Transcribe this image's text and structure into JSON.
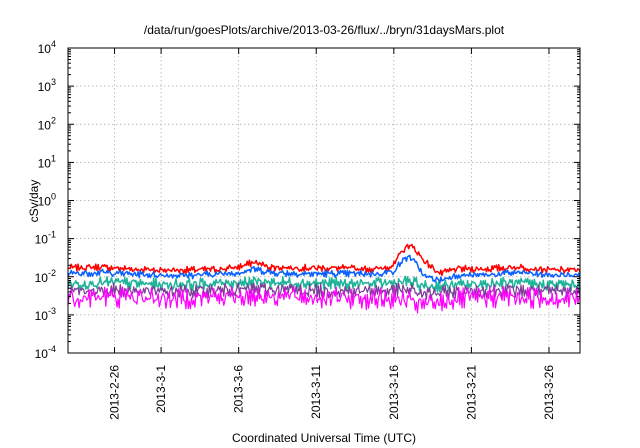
{
  "chart_data": {
    "type": "line",
    "title": "/data/run/goesPlots/archive/2013-03-26/flux/../bryn/31daysMars.plot",
    "xlabel": "Coordinated Universal Time (UTC)",
    "ylabel": "cSv/day",
    "yscale": "log",
    "ylim": [
      0.0001,
      10000
    ],
    "y_tick_labels": [
      {
        "base": "10",
        "exp": "-4"
      },
      {
        "base": "10",
        "exp": "-3"
      },
      {
        "base": "10",
        "exp": "-2"
      },
      {
        "base": "10",
        "exp": "-1"
      },
      {
        "base": "10",
        "exp": "0"
      },
      {
        "base": "10",
        "exp": "1"
      },
      {
        "base": "10",
        "exp": "2"
      },
      {
        "base": "10",
        "exp": "3"
      },
      {
        "base": "10",
        "exp": "4"
      }
    ],
    "xlim": [
      "2013-02-23",
      "2013-03-28"
    ],
    "x_ticks": [
      "2013-2-26",
      "2013-3-1",
      "2013-3-6",
      "2013-3-11",
      "2013-3-16",
      "2013-3-21",
      "2013-3-26"
    ],
    "grid": true,
    "legend": "none",
    "series": [
      {
        "color": "#ff0000",
        "x": [
          "2013-02-23",
          "2013-02-25",
          "2013-02-27",
          "2013-03-01",
          "2013-03-03",
          "2013-03-05",
          "2013-03-06",
          "2013-03-07",
          "2013-03-08",
          "2013-03-10",
          "2013-03-12",
          "2013-03-14",
          "2013-03-15",
          "2013-03-16",
          "2013-03-16T12",
          "2013-03-17",
          "2013-03-17T12",
          "2013-03-18",
          "2013-03-19",
          "2013-03-20",
          "2013-03-22",
          "2013-03-24",
          "2013-03-26",
          "2013-03-28"
        ],
        "y": [
          0.017,
          0.018,
          0.016,
          0.015,
          0.015,
          0.016,
          0.018,
          0.024,
          0.018,
          0.017,
          0.017,
          0.016,
          0.016,
          0.02,
          0.045,
          0.07,
          0.045,
          0.025,
          0.012,
          0.016,
          0.016,
          0.018,
          0.015,
          0.015
        ]
      },
      {
        "color": "#0a60ff",
        "x": [
          "2013-02-23",
          "2013-02-25",
          "2013-02-27",
          "2013-03-01",
          "2013-03-03",
          "2013-03-05",
          "2013-03-06",
          "2013-03-07",
          "2013-03-08",
          "2013-03-10",
          "2013-03-12",
          "2013-03-14",
          "2013-03-15",
          "2013-03-16",
          "2013-03-16T12",
          "2013-03-17",
          "2013-03-17T12",
          "2013-03-18",
          "2013-03-19",
          "2013-03-20",
          "2013-03-22",
          "2013-03-24",
          "2013-03-26",
          "2013-03-28"
        ],
        "y": [
          0.012,
          0.013,
          0.012,
          0.011,
          0.011,
          0.012,
          0.013,
          0.016,
          0.013,
          0.012,
          0.012,
          0.012,
          0.012,
          0.014,
          0.025,
          0.035,
          0.02,
          0.01,
          0.008,
          0.011,
          0.011,
          0.013,
          0.011,
          0.011
        ]
      },
      {
        "color": "#1fb49a",
        "x": [
          "2013-02-23",
          "2013-02-26",
          "2013-03-01",
          "2013-03-04",
          "2013-03-07",
          "2013-03-10",
          "2013-03-13",
          "2013-03-16",
          "2013-03-17",
          "2013-03-18",
          "2013-03-20",
          "2013-03-23",
          "2013-03-26",
          "2013-03-28"
        ],
        "y": [
          0.0065,
          0.007,
          0.0062,
          0.0065,
          0.0075,
          0.0068,
          0.0065,
          0.0068,
          0.0075,
          0.0055,
          0.006,
          0.0068,
          0.0062,
          0.006
        ]
      },
      {
        "color": "#7d3c98",
        "x": [
          "2013-02-23",
          "2013-02-26",
          "2013-03-01",
          "2013-03-04",
          "2013-03-07",
          "2013-03-10",
          "2013-03-13",
          "2013-03-16",
          "2013-03-17",
          "2013-03-18",
          "2013-03-20",
          "2013-03-23",
          "2013-03-26",
          "2013-03-28"
        ],
        "y": [
          0.0042,
          0.0045,
          0.004,
          0.0042,
          0.0048,
          0.0044,
          0.0042,
          0.0043,
          0.0045,
          0.0035,
          0.004,
          0.0045,
          0.0041,
          0.004
        ]
      },
      {
        "color": "#ff00ff",
        "x": [
          "2013-02-23",
          "2013-02-26",
          "2013-03-01",
          "2013-03-04",
          "2013-03-07",
          "2013-03-10",
          "2013-03-13",
          "2013-03-16",
          "2013-03-17",
          "2013-03-18",
          "2013-03-20",
          "2013-03-23",
          "2013-03-26",
          "2013-03-28"
        ],
        "y": [
          0.0028,
          0.003,
          0.0027,
          0.0029,
          0.0032,
          0.003,
          0.0028,
          0.0026,
          0.0022,
          0.0018,
          0.0026,
          0.003,
          0.0028,
          0.0027
        ]
      }
    ]
  }
}
